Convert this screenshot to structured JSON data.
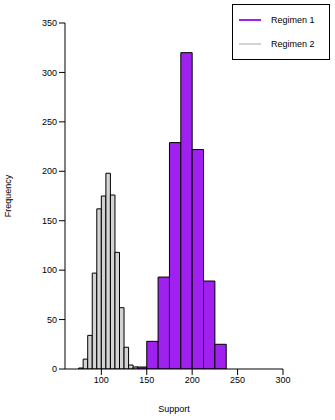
{
  "chart_data": {
    "type": "histogram",
    "xlabel": "Support",
    "ylabel": "Frequency",
    "xlim": [
      60,
      300
    ],
    "xticks": [
      100,
      150,
      200,
      250,
      300
    ],
    "ylim": [
      0,
      350
    ],
    "yticks": [
      0,
      50,
      100,
      150,
      200,
      250,
      300,
      350
    ],
    "legend": "upper right",
    "series": [
      {
        "name": "Regimen 1",
        "color": "#a020f0",
        "bins": [
          137.5,
          150,
          162.5,
          175,
          187.5,
          200,
          212.5,
          225,
          237.5
        ],
        "values": [
          2,
          28,
          93,
          229,
          320,
          222,
          89,
          25
        ]
      },
      {
        "name": "Regimen 2",
        "color": "#d3d3d3",
        "bins": [
          75,
          80,
          85,
          90,
          95,
          100,
          105,
          110,
          115,
          120,
          125,
          130,
          135,
          140
        ],
        "values": [
          1,
          10,
          34,
          97,
          162,
          175,
          198,
          176,
          118,
          62,
          22,
          4,
          2
        ]
      }
    ]
  }
}
